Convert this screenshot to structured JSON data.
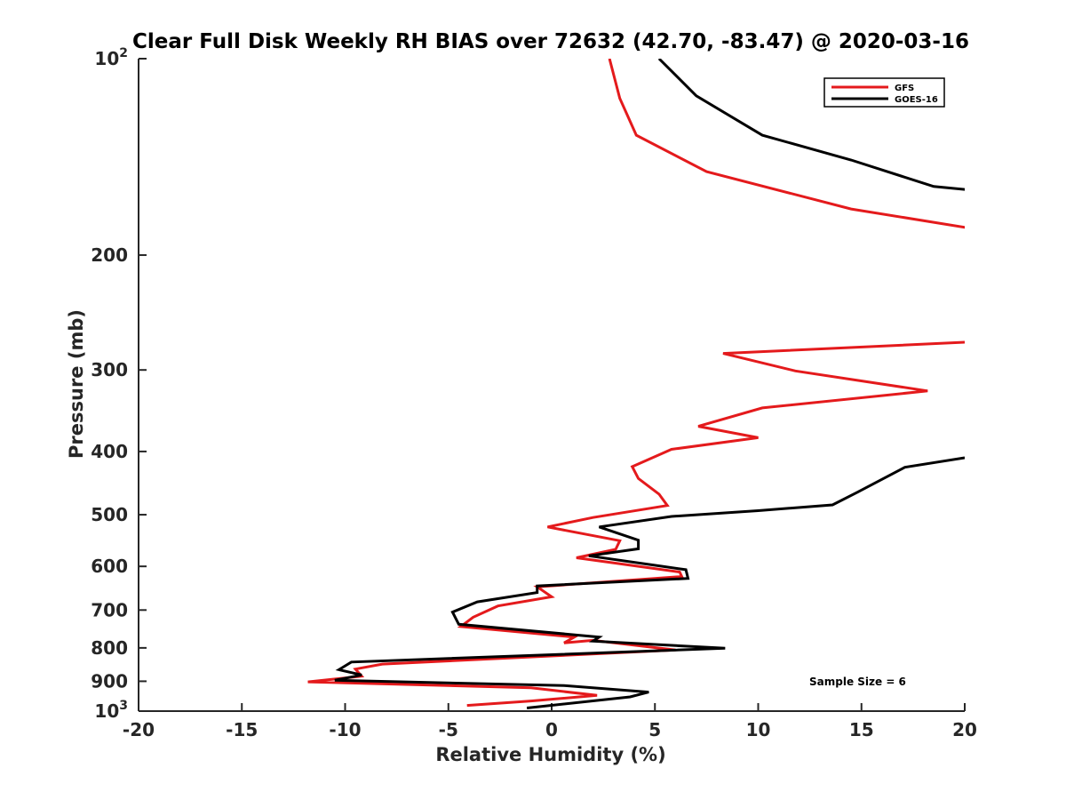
{
  "chart_data": {
    "type": "line",
    "title": "Clear Full Disk Weekly RH BIAS over 72632 (42.70, -83.47) @ 2020-03-16",
    "xlabel": "Relative Humidity (%)",
    "ylabel": "Pressure (mb)",
    "xlim": [
      -20,
      20
    ],
    "ylim": [
      100,
      1000
    ],
    "y_scale": "log",
    "y_reversed": true,
    "x_ticks": [
      "-20",
      "-15",
      "-10",
      "-5",
      "0",
      "5",
      "10",
      "15",
      "20"
    ],
    "x_tick_values": [
      -20,
      -15,
      -10,
      -5,
      0,
      5,
      10,
      15,
      20
    ],
    "y_ticks": [
      {
        "value": 100,
        "base": "10",
        "exp": "2"
      },
      {
        "value": 200,
        "base": "200",
        "exp": ""
      },
      {
        "value": 300,
        "base": "300",
        "exp": ""
      },
      {
        "value": 400,
        "base": "400",
        "exp": ""
      },
      {
        "value": 500,
        "base": "500",
        "exp": ""
      },
      {
        "value": 600,
        "base": "600",
        "exp": ""
      },
      {
        "value": 700,
        "base": "700",
        "exp": ""
      },
      {
        "value": 800,
        "base": "800",
        "exp": ""
      },
      {
        "value": 900,
        "base": "900",
        "exp": ""
      },
      {
        "value": 1000,
        "base": "10",
        "exp": "3"
      }
    ],
    "grid": false,
    "legend_position": "top-right",
    "series": [
      {
        "name": "GFS",
        "color": "#e41a1c",
        "segments": [
          [
            {
              "x": 2.8,
              "y": 100
            },
            {
              "x": 3.3,
              "y": 115
            },
            {
              "x": 4.1,
              "y": 131
            },
            {
              "x": 7.5,
              "y": 149
            },
            {
              "x": 14.5,
              "y": 170
            },
            {
              "x": 20.3,
              "y": 182
            }
          ],
          [
            {
              "x": 20.0,
              "y": 272
            },
            {
              "x": 8.3,
              "y": 283
            },
            {
              "x": 11.8,
              "y": 301
            },
            {
              "x": 18.2,
              "y": 323
            },
            {
              "x": 10.2,
              "y": 343
            },
            {
              "x": 7.1,
              "y": 366
            },
            {
              "x": 10.0,
              "y": 381
            },
            {
              "x": 5.8,
              "y": 397
            },
            {
              "x": 3.9,
              "y": 422
            },
            {
              "x": 4.2,
              "y": 440
            },
            {
              "x": 5.2,
              "y": 465
            },
            {
              "x": 5.6,
              "y": 484
            },
            {
              "x": 2.0,
              "y": 505
            },
            {
              "x": -0.2,
              "y": 522
            },
            {
              "x": 3.3,
              "y": 548
            },
            {
              "x": 3.1,
              "y": 565
            },
            {
              "x": 1.2,
              "y": 582
            },
            {
              "x": 6.2,
              "y": 612
            },
            {
              "x": 6.3,
              "y": 622
            },
            {
              "x": -0.7,
              "y": 645
            },
            {
              "x": 0.0,
              "y": 668
            },
            {
              "x": -2.6,
              "y": 690
            },
            {
              "x": -3.8,
              "y": 718
            },
            {
              "x": -4.4,
              "y": 742
            },
            {
              "x": 1.1,
              "y": 770
            },
            {
              "x": 0.6,
              "y": 786
            },
            {
              "x": 2.0,
              "y": 779
            },
            {
              "x": 6.0,
              "y": 806
            },
            {
              "x": -8.2,
              "y": 847
            },
            {
              "x": -9.5,
              "y": 862
            },
            {
              "x": -9.2,
              "y": 884
            },
            {
              "x": -11.8,
              "y": 902
            },
            {
              "x": -1.0,
              "y": 921
            },
            {
              "x": 2.2,
              "y": 946
            },
            {
              "x": -1.0,
              "y": 965
            },
            {
              "x": -4.1,
              "y": 980
            }
          ]
        ]
      },
      {
        "name": "GOES-16",
        "color": "#000000",
        "segments": [
          [
            {
              "x": 5.2,
              "y": 100
            },
            {
              "x": 7.0,
              "y": 114
            },
            {
              "x": 10.2,
              "y": 131
            },
            {
              "x": 14.5,
              "y": 143
            },
            {
              "x": 18.5,
              "y": 157
            },
            {
              "x": 20.3,
              "y": 159
            }
          ],
          [
            {
              "x": 20.0,
              "y": 409
            },
            {
              "x": 17.1,
              "y": 423
            },
            {
              "x": 14.8,
              "y": 462
            },
            {
              "x": 13.6,
              "y": 483
            },
            {
              "x": 10.0,
              "y": 493
            },
            {
              "x": 5.8,
              "y": 503
            },
            {
              "x": 2.3,
              "y": 522
            },
            {
              "x": 4.2,
              "y": 547
            },
            {
              "x": 4.2,
              "y": 564
            },
            {
              "x": 1.8,
              "y": 578
            },
            {
              "x": 6.5,
              "y": 607
            },
            {
              "x": 6.6,
              "y": 626
            },
            {
              "x": -0.7,
              "y": 643
            },
            {
              "x": -0.7,
              "y": 658
            },
            {
              "x": -3.6,
              "y": 680
            },
            {
              "x": -4.8,
              "y": 705
            },
            {
              "x": -4.5,
              "y": 736
            },
            {
              "x": 2.3,
              "y": 770
            },
            {
              "x": 2.0,
              "y": 781
            },
            {
              "x": 8.4,
              "y": 801
            },
            {
              "x": -9.7,
              "y": 841
            },
            {
              "x": -10.3,
              "y": 864
            },
            {
              "x": -9.2,
              "y": 880
            },
            {
              "x": -10.5,
              "y": 897
            },
            {
              "x": 0.6,
              "y": 914
            },
            {
              "x": 4.7,
              "y": 935
            },
            {
              "x": 3.8,
              "y": 951
            },
            {
              "x": -1.2,
              "y": 989
            }
          ]
        ]
      }
    ],
    "annotations": [
      {
        "text": "Sample Size = 6"
      }
    ]
  }
}
